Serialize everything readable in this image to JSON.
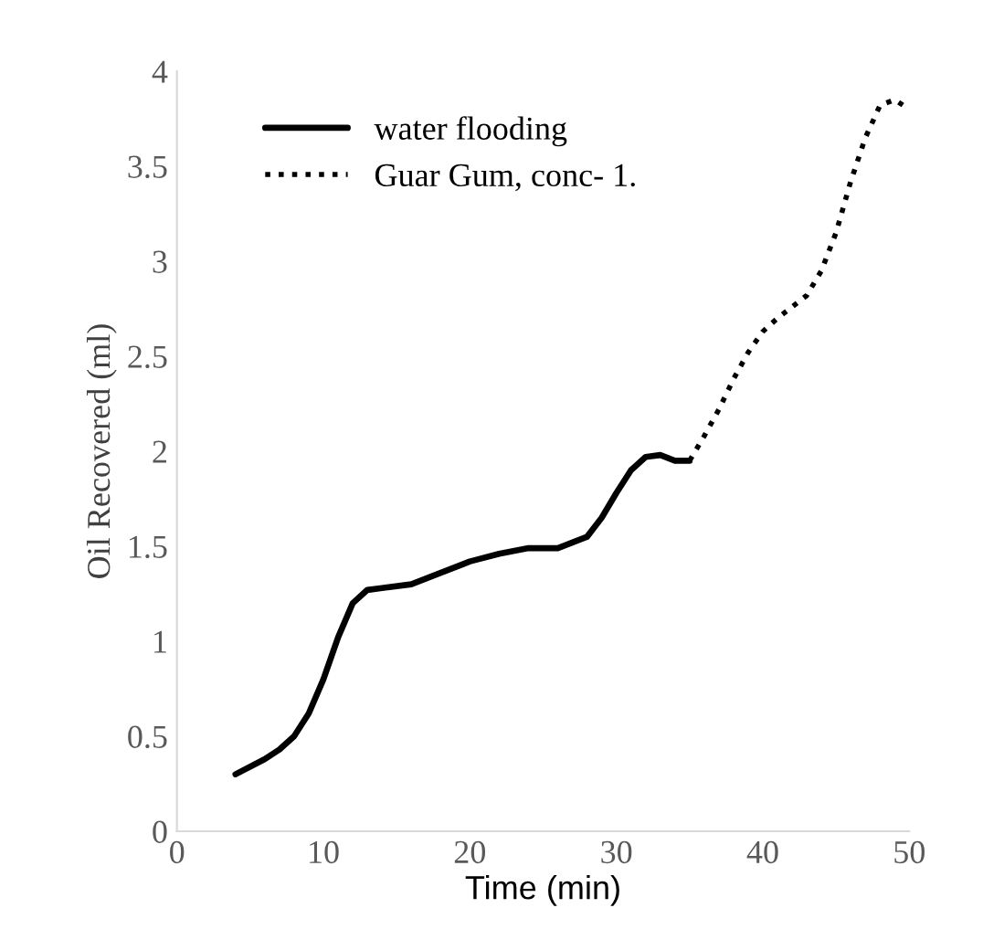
{
  "chart_data": {
    "type": "line",
    "xlabel": "Time (min)",
    "ylabel": "Oil Recovered (ml)",
    "xlim": [
      0,
      50
    ],
    "xticks": [
      0,
      10,
      20,
      30,
      40,
      50
    ],
    "ylim": [
      0,
      4
    ],
    "yticks": [
      0,
      0.5,
      1,
      1.5,
      2,
      2.5,
      3,
      3.5,
      4
    ],
    "grid": false,
    "legend": "top left",
    "marker": "none",
    "series": [
      {
        "name": "water flooding",
        "color": "#000000",
        "line_style": "solid",
        "x": [
          4,
          6,
          7,
          8,
          9,
          10,
          11,
          12,
          13,
          14,
          16,
          18,
          20,
          22,
          24,
          26,
          28,
          29,
          30,
          31,
          32,
          33,
          34,
          35
        ],
        "values": [
          0.3,
          0.38,
          0.43,
          0.5,
          0.62,
          0.8,
          1.02,
          1.2,
          1.27,
          1.28,
          1.3,
          1.36,
          1.42,
          1.46,
          1.49,
          1.49,
          1.55,
          1.65,
          1.78,
          1.9,
          1.97,
          1.98,
          1.95,
          1.95
        ]
      },
      {
        "name": "Guar Gum, conc- 1.",
        "color": "#000000",
        "line_style": "dotted",
        "x": [
          35,
          36,
          37,
          38,
          39,
          40,
          41,
          42,
          43,
          44,
          45,
          46,
          47,
          48,
          49,
          50
        ],
        "values": [
          1.95,
          2.08,
          2.22,
          2.38,
          2.52,
          2.63,
          2.7,
          2.76,
          2.82,
          2.95,
          3.15,
          3.42,
          3.65,
          3.82,
          3.85,
          3.8
        ]
      }
    ]
  }
}
